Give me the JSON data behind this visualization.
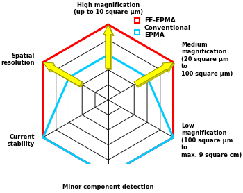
{
  "categories": [
    "High magnification\n(up to 10 square μm)",
    "Medium\nmagnification\n(20 square μm\nto\n100 square μm)",
    "Low\nmagnification\n(100 square μm\nto\nmax. 9 square cm)",
    "Minor component detection",
    "Current\nstability",
    "Spatial\nresolution"
  ],
  "fe_epma_values": [
    5,
    5,
    5,
    5,
    5,
    5
  ],
  "conv_epma_values": [
    3,
    3,
    5,
    5,
    5,
    3
  ],
  "fe_color": "#ff0000",
  "conv_color": "#00ccff",
  "grid_color": "#111111",
  "arrow_color": "#ffff00",
  "arrow_edge_color": "#999900",
  "arrow_axes": [
    0,
    1,
    5
  ],
  "n_levels": 5,
  "background": "#ffffff",
  "legend_fe_label": "FE-EPMA",
  "legend_conv_label": "Conventional\nEPMA",
  "fe_lw": 2.2,
  "conv_lw": 2.2,
  "grid_lw": 0.7,
  "spoke_lw": 0.7,
  "label_fontsize": 6.0,
  "legend_fontsize": 6.5,
  "figsize": [
    3.5,
    2.78
  ],
  "dpi": 100
}
